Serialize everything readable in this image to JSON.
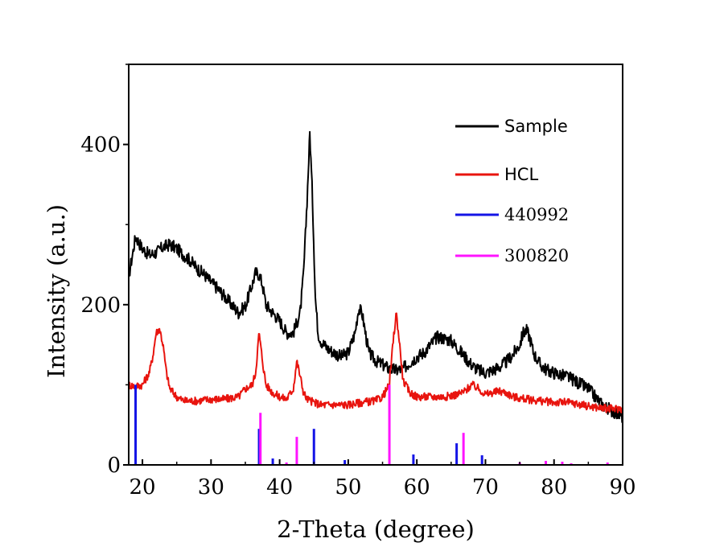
{
  "chart_data": {
    "type": "line",
    "xlabel": "2-Theta (degree)",
    "ylabel": "Intensity (a.u.)",
    "xlim": [
      18,
      90
    ],
    "ylim": [
      0,
      500
    ],
    "x_ticks": [
      20,
      30,
      40,
      50,
      60,
      70,
      80,
      90
    ],
    "y_ticks": [
      0,
      200,
      400
    ],
    "legend_position": "top-right",
    "series": [
      {
        "name": "Sample",
        "kind": "line",
        "color": "#000000",
        "x": [
          18,
          19,
          20,
          21,
          22,
          23,
          24,
          25,
          26,
          27,
          28,
          29,
          30,
          31,
          32,
          33,
          34,
          35,
          36,
          36.5,
          37,
          37.5,
          38,
          39,
          40,
          41,
          42,
          43,
          43.5,
          44,
          44.4,
          44.8,
          45.2,
          45.6,
          46,
          47,
          48,
          49,
          50,
          51,
          51.5,
          52,
          52.5,
          53,
          54,
          55,
          56,
          57,
          58,
          59,
          60,
          61,
          62,
          63,
          64,
          65,
          66,
          67,
          68,
          69,
          70,
          71,
          72,
          73,
          74,
          75,
          75.5,
          76,
          76.5,
          77,
          78,
          79,
          80,
          81,
          82,
          83,
          84,
          85,
          86,
          87,
          88,
          89,
          90
        ],
        "y": [
          235,
          285,
          270,
          262,
          265,
          272,
          275,
          270,
          262,
          255,
          245,
          238,
          228,
          220,
          210,
          200,
          190,
          198,
          225,
          240,
          238,
          225,
          200,
          190,
          180,
          165,
          165,
          190,
          240,
          330,
          415,
          330,
          210,
          165,
          155,
          145,
          140,
          135,
          140,
          165,
          195,
          190,
          165,
          140,
          130,
          125,
          120,
          118,
          120,
          128,
          135,
          140,
          150,
          160,
          158,
          155,
          145,
          135,
          125,
          118,
          115,
          118,
          122,
          128,
          138,
          150,
          165,
          168,
          158,
          140,
          125,
          118,
          115,
          112,
          110,
          105,
          100,
          95,
          85,
          75,
          70,
          65,
          60
        ]
      },
      {
        "name": "HCL",
        "kind": "line",
        "color": "#e8140e",
        "x": [
          18,
          19,
          20,
          21,
          21.5,
          22,
          22.5,
          23,
          23.5,
          24,
          25,
          26,
          28,
          30,
          32,
          34,
          35,
          36,
          36.5,
          37,
          37.5,
          38,
          39,
          40,
          41,
          42,
          42.5,
          43,
          43.5,
          44,
          45,
          46,
          48,
          50,
          52,
          54,
          55,
          56,
          56.5,
          57,
          57.5,
          58,
          59,
          60,
          62,
          64,
          66,
          67,
          68,
          69,
          70,
          72,
          73,
          74,
          76,
          78,
          80,
          82,
          84,
          86,
          88,
          90
        ],
        "y": [
          100,
          98,
          100,
          115,
          135,
          165,
          170,
          150,
          115,
          95,
          85,
          80,
          80,
          82,
          82,
          85,
          95,
          100,
          115,
          165,
          130,
          100,
          90,
          85,
          82,
          95,
          130,
          110,
          90,
          82,
          78,
          75,
          75,
          75,
          78,
          80,
          85,
          100,
          150,
          190,
          150,
          105,
          90,
          85,
          85,
          85,
          88,
          92,
          100,
          95,
          88,
          92,
          90,
          85,
          82,
          80,
          78,
          78,
          75,
          72,
          70,
          70
        ]
      },
      {
        "name": "440992",
        "kind": "sticks",
        "color": "#1414e6",
        "x": [
          19.0,
          37.0,
          39.0,
          45.0,
          49.5,
          59.5,
          65.8,
          69.5
        ],
        "y": [
          100,
          45,
          8,
          45,
          6,
          13,
          27,
          12
        ]
      },
      {
        "name": "300820",
        "kind": "sticks",
        "color": "#ff14ff",
        "x": [
          37.2,
          41.0,
          42.5,
          56.0,
          66.8,
          75.0,
          78.8,
          81.2,
          82.5,
          87.8
        ],
        "y": [
          65,
          3,
          35,
          100,
          40,
          3,
          5,
          4,
          2,
          3
        ]
      }
    ]
  }
}
